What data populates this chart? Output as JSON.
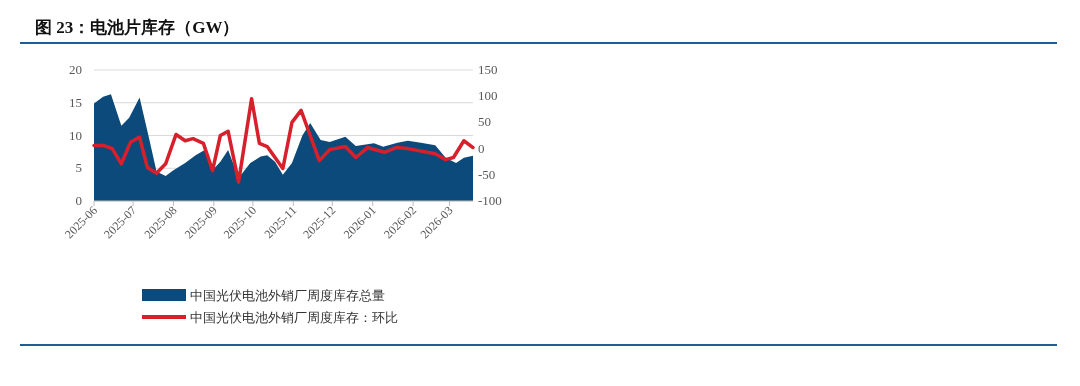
{
  "chart_data": {
    "type": "area",
    "title": "图 23：电池片库存（GW）",
    "xlim": [
      "2025-06-01",
      "2026-03-19"
    ],
    "xticks": [
      "2025-06",
      "2025-07",
      "2025-08",
      "2025-09",
      "2025-10",
      "2025-11",
      "2025-12",
      "2026-01",
      "2026-02",
      "2026-03"
    ],
    "ylim": [
      0,
      20
    ],
    "yticks": [
      0,
      5,
      10,
      15,
      20
    ],
    "y2lim": [
      -100,
      150
    ],
    "y2ticks": [
      -100,
      -50,
      0,
      50,
      100,
      150
    ],
    "grid": "y",
    "legend": "bottom",
    "series": [
      {
        "name": "中国光伏电池外销厂周度库存总量",
        "color": "#0b4a7a",
        "x": [
          "2025-06-01",
          "2025-06-08",
          "2025-06-14",
          "2025-06-22",
          "2025-06-28",
          "2025-07-06",
          "2025-07-13",
          "2025-07-19",
          "2025-07-26",
          "2025-08-01",
          "2025-08-10",
          "2025-08-18",
          "2025-08-25",
          "2025-08-31",
          "2025-09-06",
          "2025-09-12",
          "2025-09-20",
          "2025-09-29",
          "2025-10-07",
          "2025-10-12",
          "2025-10-18",
          "2025-10-24",
          "2025-10-31",
          "2025-11-08",
          "2025-11-14",
          "2025-11-22",
          "2025-11-29",
          "2025-12-11",
          "2025-12-19",
          "2026-01-02",
          "2026-01-09",
          "2026-01-20",
          "2026-01-28",
          "2026-02-07",
          "2026-02-18",
          "2026-02-26",
          "2026-03-06",
          "2026-03-12",
          "2026-03-19"
        ],
        "values": [
          14.9,
          15.9,
          16.3,
          11.5,
          12.7,
          15.8,
          9.8,
          4.5,
          3.8,
          4.7,
          5.8,
          7.0,
          7.8,
          4.7,
          6.0,
          7.8,
          3.5,
          5.8,
          6.8,
          7.0,
          6.0,
          4.0,
          5.8,
          10.0,
          11.9,
          9.3,
          9.0,
          9.8,
          8.4,
          8.8,
          8.3,
          8.9,
          9.2,
          8.9,
          8.5,
          6.6,
          5.8,
          6.6,
          6.9
        ]
      },
      {
        "name": "中国光伏电池外销厂周度库存：环比",
        "type": "line",
        "axis": "y2",
        "color": "#d7202b",
        "x": [
          "2025-06-01",
          "2025-06-08",
          "2025-06-15",
          "2025-06-22",
          "2025-06-29",
          "2025-07-06",
          "2025-07-12",
          "2025-07-19",
          "2025-07-26",
          "2025-08-03",
          "2025-08-10",
          "2025-08-16",
          "2025-08-24",
          "2025-08-31",
          "2025-09-06",
          "2025-09-12",
          "2025-09-20",
          "2025-09-30",
          "2025-10-06",
          "2025-10-12",
          "2025-10-24",
          "2025-10-31",
          "2025-11-07",
          "2025-11-21",
          "2025-11-29",
          "2025-12-11",
          "2025-12-19",
          "2025-12-28",
          "2026-01-10",
          "2026-01-19",
          "2026-01-28",
          "2026-02-18",
          "2026-02-26",
          "2026-03-04",
          "2026-03-12",
          "2026-03-19"
        ],
        "values": [
          6,
          6,
          0,
          -29,
          12,
          22,
          -36,
          -47,
          -29,
          27,
          15,
          19,
          10,
          -42,
          25,
          33,
          -64,
          95,
          10,
          4,
          -38,
          50,
          73,
          -23,
          -2,
          4,
          -17,
          2,
          -7,
          2,
          0,
          -10,
          -21,
          -17,
          15,
          2
        ]
      }
    ]
  }
}
